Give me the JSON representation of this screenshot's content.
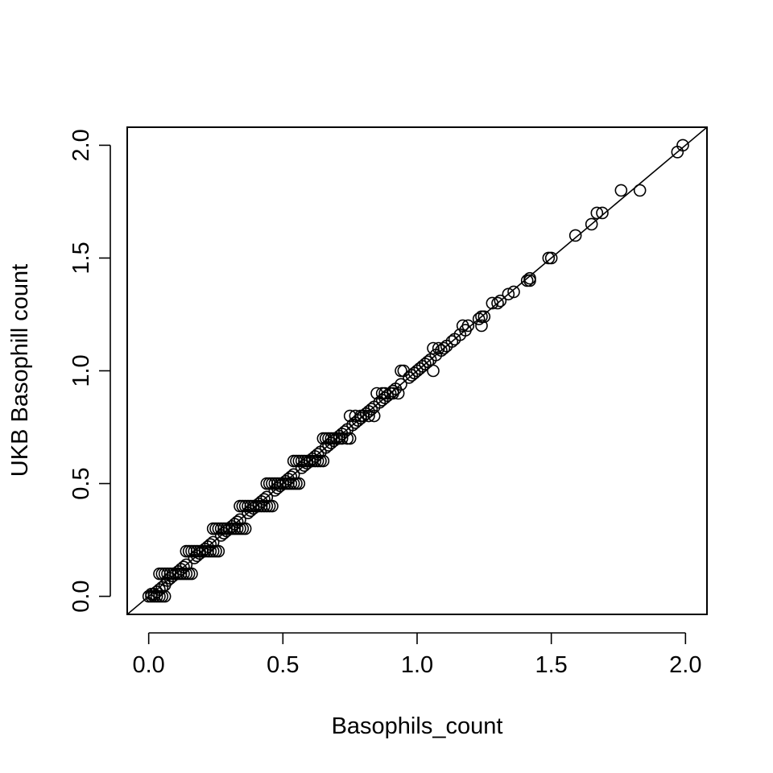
{
  "chart_data": {
    "type": "scatter",
    "title": "",
    "xlabel": "Basophils_count",
    "ylabel": "UKB Basophill count",
    "xlim": [
      -0.08,
      2.08
    ],
    "ylim": [
      -0.08,
      2.08
    ],
    "x_ticks": [
      {
        "value": 0.0,
        "label": "0.0"
      },
      {
        "value": 0.5,
        "label": "0.5"
      },
      {
        "value": 1.0,
        "label": "1.0"
      },
      {
        "value": 1.5,
        "label": "1.5"
      },
      {
        "value": 2.0,
        "label": "2.0"
      }
    ],
    "y_ticks": [
      {
        "value": 0.0,
        "label": "0.0"
      },
      {
        "value": 0.5,
        "label": "0.5"
      },
      {
        "value": 1.0,
        "label": "1.0"
      },
      {
        "value": 1.5,
        "label": "1.5"
      },
      {
        "value": 2.0,
        "label": "2.0"
      }
    ],
    "marker": "open-circle",
    "reference_line": {
      "type": "identity",
      "slope": 1,
      "intercept": 0
    },
    "grid": false,
    "legend": "none",
    "points": [
      [
        0.0,
        0.0
      ],
      [
        0.01,
        0.0
      ],
      [
        0.02,
        0.0
      ],
      [
        0.03,
        0.0
      ],
      [
        0.04,
        0.0
      ],
      [
        0.05,
        0.0
      ],
      [
        0.06,
        0.0
      ],
      [
        0.01,
        0.01
      ],
      [
        0.02,
        0.01
      ],
      [
        0.03,
        0.02
      ],
      [
        0.04,
        0.03
      ],
      [
        0.05,
        0.04
      ],
      [
        0.06,
        0.05
      ],
      [
        0.04,
        0.1
      ],
      [
        0.05,
        0.1
      ],
      [
        0.06,
        0.1
      ],
      [
        0.07,
        0.1
      ],
      [
        0.08,
        0.1
      ],
      [
        0.09,
        0.1
      ],
      [
        0.1,
        0.1
      ],
      [
        0.11,
        0.1
      ],
      [
        0.12,
        0.1
      ],
      [
        0.13,
        0.1
      ],
      [
        0.14,
        0.1
      ],
      [
        0.15,
        0.1
      ],
      [
        0.16,
        0.1
      ],
      [
        0.07,
        0.07
      ],
      [
        0.08,
        0.08
      ],
      [
        0.09,
        0.09
      ],
      [
        0.11,
        0.11
      ],
      [
        0.12,
        0.12
      ],
      [
        0.13,
        0.13
      ],
      [
        0.14,
        0.14
      ],
      [
        0.14,
        0.2
      ],
      [
        0.15,
        0.2
      ],
      [
        0.16,
        0.2
      ],
      [
        0.17,
        0.2
      ],
      [
        0.18,
        0.2
      ],
      [
        0.19,
        0.2
      ],
      [
        0.2,
        0.2
      ],
      [
        0.21,
        0.2
      ],
      [
        0.22,
        0.2
      ],
      [
        0.23,
        0.2
      ],
      [
        0.24,
        0.2
      ],
      [
        0.25,
        0.2
      ],
      [
        0.26,
        0.2
      ],
      [
        0.17,
        0.17
      ],
      [
        0.18,
        0.18
      ],
      [
        0.19,
        0.19
      ],
      [
        0.21,
        0.21
      ],
      [
        0.22,
        0.22
      ],
      [
        0.23,
        0.23
      ],
      [
        0.24,
        0.24
      ],
      [
        0.24,
        0.3
      ],
      [
        0.25,
        0.3
      ],
      [
        0.26,
        0.3
      ],
      [
        0.27,
        0.3
      ],
      [
        0.28,
        0.3
      ],
      [
        0.29,
        0.3
      ],
      [
        0.3,
        0.3
      ],
      [
        0.31,
        0.3
      ],
      [
        0.32,
        0.3
      ],
      [
        0.33,
        0.3
      ],
      [
        0.34,
        0.3
      ],
      [
        0.35,
        0.3
      ],
      [
        0.36,
        0.3
      ],
      [
        0.27,
        0.27
      ],
      [
        0.28,
        0.28
      ],
      [
        0.29,
        0.29
      ],
      [
        0.31,
        0.31
      ],
      [
        0.32,
        0.32
      ],
      [
        0.33,
        0.33
      ],
      [
        0.34,
        0.34
      ],
      [
        0.34,
        0.4
      ],
      [
        0.35,
        0.4
      ],
      [
        0.36,
        0.4
      ],
      [
        0.37,
        0.4
      ],
      [
        0.38,
        0.4
      ],
      [
        0.39,
        0.4
      ],
      [
        0.4,
        0.4
      ],
      [
        0.41,
        0.4
      ],
      [
        0.42,
        0.4
      ],
      [
        0.43,
        0.4
      ],
      [
        0.44,
        0.4
      ],
      [
        0.45,
        0.4
      ],
      [
        0.46,
        0.4
      ],
      [
        0.37,
        0.37
      ],
      [
        0.38,
        0.38
      ],
      [
        0.39,
        0.39
      ],
      [
        0.41,
        0.41
      ],
      [
        0.42,
        0.42
      ],
      [
        0.43,
        0.43
      ],
      [
        0.44,
        0.44
      ],
      [
        0.44,
        0.5
      ],
      [
        0.45,
        0.5
      ],
      [
        0.46,
        0.5
      ],
      [
        0.47,
        0.5
      ],
      [
        0.48,
        0.5
      ],
      [
        0.49,
        0.5
      ],
      [
        0.5,
        0.5
      ],
      [
        0.51,
        0.5
      ],
      [
        0.52,
        0.5
      ],
      [
        0.53,
        0.5
      ],
      [
        0.54,
        0.5
      ],
      [
        0.55,
        0.5
      ],
      [
        0.56,
        0.5
      ],
      [
        0.47,
        0.47
      ],
      [
        0.48,
        0.48
      ],
      [
        0.49,
        0.49
      ],
      [
        0.51,
        0.51
      ],
      [
        0.52,
        0.52
      ],
      [
        0.53,
        0.53
      ],
      [
        0.54,
        0.54
      ],
      [
        0.54,
        0.6
      ],
      [
        0.55,
        0.6
      ],
      [
        0.56,
        0.6
      ],
      [
        0.57,
        0.6
      ],
      [
        0.58,
        0.6
      ],
      [
        0.59,
        0.6
      ],
      [
        0.6,
        0.6
      ],
      [
        0.61,
        0.6
      ],
      [
        0.62,
        0.6
      ],
      [
        0.63,
        0.6
      ],
      [
        0.64,
        0.6
      ],
      [
        0.65,
        0.6
      ],
      [
        0.57,
        0.57
      ],
      [
        0.58,
        0.58
      ],
      [
        0.59,
        0.59
      ],
      [
        0.61,
        0.61
      ],
      [
        0.62,
        0.62
      ],
      [
        0.63,
        0.63
      ],
      [
        0.64,
        0.64
      ],
      [
        0.65,
        0.7
      ],
      [
        0.66,
        0.7
      ],
      [
        0.67,
        0.7
      ],
      [
        0.68,
        0.7
      ],
      [
        0.69,
        0.7
      ],
      [
        0.7,
        0.7
      ],
      [
        0.71,
        0.7
      ],
      [
        0.72,
        0.7
      ],
      [
        0.74,
        0.7
      ],
      [
        0.75,
        0.7
      ],
      [
        0.66,
        0.66
      ],
      [
        0.67,
        0.67
      ],
      [
        0.68,
        0.68
      ],
      [
        0.69,
        0.69
      ],
      [
        0.71,
        0.71
      ],
      [
        0.72,
        0.72
      ],
      [
        0.73,
        0.73
      ],
      [
        0.74,
        0.74
      ],
      [
        0.75,
        0.8
      ],
      [
        0.77,
        0.8
      ],
      [
        0.79,
        0.8
      ],
      [
        0.8,
        0.8
      ],
      [
        0.82,
        0.8
      ],
      [
        0.84,
        0.8
      ],
      [
        0.76,
        0.76
      ],
      [
        0.77,
        0.77
      ],
      [
        0.78,
        0.78
      ],
      [
        0.79,
        0.79
      ],
      [
        0.81,
        0.81
      ],
      [
        0.82,
        0.82
      ],
      [
        0.83,
        0.83
      ],
      [
        0.84,
        0.84
      ],
      [
        0.85,
        0.9
      ],
      [
        0.87,
        0.9
      ],
      [
        0.88,
        0.9
      ],
      [
        0.9,
        0.9
      ],
      [
        0.91,
        0.9
      ],
      [
        0.93,
        0.9
      ],
      [
        0.86,
        0.86
      ],
      [
        0.87,
        0.87
      ],
      [
        0.88,
        0.88
      ],
      [
        0.89,
        0.89
      ],
      [
        0.91,
        0.91
      ],
      [
        0.92,
        0.92
      ],
      [
        0.94,
        0.94
      ],
      [
        0.94,
        1.0
      ],
      [
        0.95,
        1.0
      ],
      [
        0.97,
        0.97
      ],
      [
        0.98,
        0.98
      ],
      [
        0.99,
        0.99
      ],
      [
        1.0,
        1.0
      ],
      [
        1.01,
        1.01
      ],
      [
        1.02,
        1.02
      ],
      [
        1.03,
        1.03
      ],
      [
        1.04,
        1.04
      ],
      [
        1.05,
        1.05
      ],
      [
        1.06,
        1.0
      ],
      [
        1.06,
        1.1
      ],
      [
        1.07,
        1.07
      ],
      [
        1.08,
        1.1
      ],
      [
        1.09,
        1.09
      ],
      [
        1.1,
        1.1
      ],
      [
        1.11,
        1.11
      ],
      [
        1.13,
        1.13
      ],
      [
        1.14,
        1.14
      ],
      [
        1.16,
        1.16
      ],
      [
        1.17,
        1.2
      ],
      [
        1.18,
        1.18
      ],
      [
        1.19,
        1.2
      ],
      [
        1.23,
        1.23
      ],
      [
        1.24,
        1.2
      ],
      [
        1.24,
        1.24
      ],
      [
        1.25,
        1.24
      ],
      [
        1.28,
        1.3
      ],
      [
        1.3,
        1.3
      ],
      [
        1.31,
        1.31
      ],
      [
        1.34,
        1.34
      ],
      [
        1.36,
        1.35
      ],
      [
        1.41,
        1.4
      ],
      [
        1.42,
        1.4
      ],
      [
        1.42,
        1.41
      ],
      [
        1.49,
        1.5
      ],
      [
        1.5,
        1.5
      ],
      [
        1.59,
        1.6
      ],
      [
        1.65,
        1.65
      ],
      [
        1.67,
        1.7
      ],
      [
        1.69,
        1.7
      ],
      [
        1.76,
        1.8
      ],
      [
        1.83,
        1.8
      ],
      [
        1.97,
        1.97
      ],
      [
        1.99,
        2.0
      ]
    ]
  }
}
